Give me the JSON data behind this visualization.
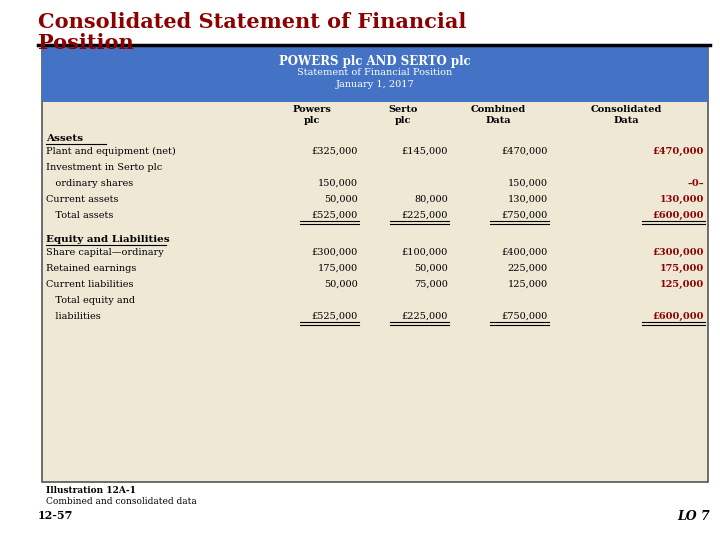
{
  "title_line1": "Consolidated Statement of Financial",
  "title_line2": "Position",
  "title_color": "#8B0000",
  "header_bg": "#4472C4",
  "header_text1": "POWERS plc AND SERTO plc",
  "header_text2": "Statement of Financial Position",
  "header_text3": "January 1, 2017",
  "table_bg": "#EEE8D5",
  "section1_label": "Assets",
  "rows": [
    {
      "label": "Plant and equipment (net)",
      "powers": "£325,000",
      "serto": "£145,000",
      "combined": "£470,000",
      "consolidated": "£470,000",
      "cons_bold": true
    },
    {
      "label": "Investment in Serto plc",
      "powers": "",
      "serto": "",
      "combined": "",
      "consolidated": "",
      "cons_bold": false
    },
    {
      "label": "   ordinary shares",
      "powers": "150,000",
      "serto": "",
      "combined": "150,000",
      "consolidated": "–0–",
      "cons_bold": true
    },
    {
      "label": "Current assets",
      "powers": "50,000",
      "serto": "80,000",
      "combined": "130,000",
      "consolidated": "130,000",
      "cons_bold": true
    },
    {
      "label": "   Total assets",
      "powers": "£525,000",
      "serto": "£225,000",
      "combined": "£750,000",
      "consolidated": "£600,000",
      "cons_bold": true,
      "double_underline": true
    }
  ],
  "section2_label": "Equity and Liabilities",
  "rows2": [
    {
      "label": "Share capital—ordinary",
      "powers": "£300,000",
      "serto": "£100,000",
      "combined": "£400,000",
      "consolidated": "£300,000",
      "cons_bold": true
    },
    {
      "label": "Retained earnings",
      "powers": "175,000",
      "serto": "50,000",
      "combined": "225,000",
      "consolidated": "175,000",
      "cons_bold": true
    },
    {
      "label": "Current liabilities",
      "powers": "50,000",
      "serto": "75,000",
      "combined": "125,000",
      "consolidated": "125,000",
      "cons_bold": true
    },
    {
      "label": "   Total equity and",
      "powers": "",
      "serto": "",
      "combined": "",
      "consolidated": "",
      "cons_bold": false
    },
    {
      "label": "   liabilities",
      "powers": "£525,000",
      "serto": "£225,000",
      "combined": "£750,000",
      "consolidated": "£600,000",
      "cons_bold": true,
      "double_underline": true
    }
  ],
  "footer_bold": "Illustration 12A-1",
  "footer_normal": "Combined and consolidated data",
  "slide_num": "12-57",
  "lo": "LO 7",
  "normal_color": "#000000",
  "cons_color": "#8B0000"
}
